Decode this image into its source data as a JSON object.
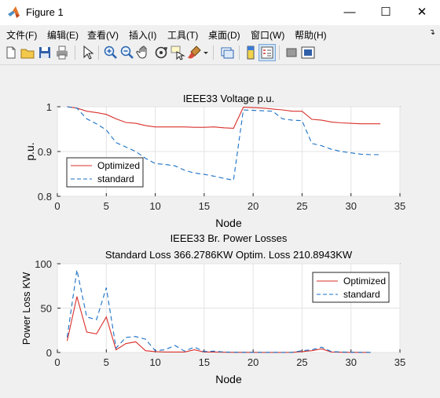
{
  "window": {
    "title": "Figure 1",
    "minimize": "—",
    "maximize": "☐",
    "close": "✕"
  },
  "menu": [
    {
      "label": "文件(F)"
    },
    {
      "label": "编辑(E)"
    },
    {
      "label": "查看(V)"
    },
    {
      "label": "插入(I)"
    },
    {
      "label": "工具(T)"
    },
    {
      "label": "桌面(D)"
    },
    {
      "label": "窗口(W)"
    },
    {
      "label": "帮助(H)"
    }
  ],
  "toolbar": [
    "new-figure-icon",
    "open-file-icon",
    "save-icon",
    "print-icon",
    "pointer-icon",
    "zoom-in-icon",
    "zoom-out-icon",
    "pan-hand-icon",
    "rotate-3d-icon",
    "data-cursor-icon",
    "brush-icon",
    "link-plot-icon",
    "colorbar-icon",
    "legend-icon",
    "hide-plot-tools-icon",
    "show-plot-tools-icon"
  ],
  "colors": {
    "optimized": "#d9302b",
    "standard": "#1a6fc4"
  },
  "chart_data": [
    {
      "type": "line",
      "title": "IEEE33 Voltage p.u.",
      "xlabel": "Node",
      "ylabel": "p.u.",
      "xlim": [
        0,
        35
      ],
      "ylim": [
        0.8,
        1.0
      ],
      "xticks": [
        "0",
        "5",
        "10",
        "15",
        "20",
        "25",
        "30",
        "35"
      ],
      "yticks": [
        "0.8",
        "0.9",
        "1"
      ],
      "grid": true,
      "legend": "bottom-left",
      "x": [
        1,
        2,
        3,
        4,
        5,
        6,
        7,
        8,
        9,
        10,
        11,
        12,
        13,
        14,
        15,
        16,
        17,
        18,
        19,
        20,
        21,
        22,
        23,
        24,
        25,
        26,
        27,
        28,
        29,
        30,
        31,
        32,
        33
      ],
      "series": [
        {
          "name": "Optimized",
          "style": "solid",
          "values": [
            1.0,
            0.997,
            0.99,
            0.987,
            0.983,
            0.973,
            0.965,
            0.963,
            0.958,
            0.955,
            0.955,
            0.955,
            0.955,
            0.954,
            0.954,
            0.955,
            0.953,
            0.952,
            0.999,
            0.998,
            0.997,
            0.995,
            0.993,
            0.99,
            0.99,
            0.972,
            0.97,
            0.966,
            0.964,
            0.963,
            0.962,
            0.962,
            0.962
          ]
        },
        {
          "name": "standard",
          "style": "dashed",
          "values": [
            1.0,
            0.997,
            0.973,
            0.962,
            0.948,
            0.92,
            0.91,
            0.9,
            0.885,
            0.873,
            0.871,
            0.868,
            0.858,
            0.852,
            0.849,
            0.845,
            0.84,
            0.836,
            0.993,
            0.992,
            0.991,
            0.99,
            0.973,
            0.97,
            0.969,
            0.918,
            0.913,
            0.905,
            0.9,
            0.897,
            0.894,
            0.893,
            0.893
          ]
        }
      ]
    },
    {
      "type": "line",
      "title": "IEEE33 Br. Power Losses",
      "subtitle": "Standard Loss 366.2786KW  Optim. Loss 210.8943KW",
      "xlabel": "Node",
      "ylabel": "Power Loss KW",
      "xlim": [
        0,
        35
      ],
      "ylim": [
        0,
        100
      ],
      "xticks": [
        "0",
        "5",
        "10",
        "15",
        "20",
        "25",
        "30",
        "35"
      ],
      "yticks": [
        "0",
        "50",
        "100"
      ],
      "grid": true,
      "legend": "top-right",
      "x": [
        1,
        2,
        3,
        4,
        5,
        6,
        7,
        8,
        9,
        10,
        11,
        12,
        13,
        14,
        15,
        16,
        17,
        18,
        19,
        20,
        21,
        22,
        23,
        24,
        25,
        26,
        27,
        28,
        29,
        30,
        31,
        32
      ],
      "series": [
        {
          "name": "Optimized",
          "style": "solid",
          "values": [
            13,
            63,
            23,
            21,
            40,
            3,
            10,
            12,
            2,
            1,
            0.5,
            0.5,
            0.5,
            3,
            0.5,
            0.5,
            0.3,
            0.2,
            0.2,
            0.2,
            0.1,
            0.1,
            0.1,
            0.2,
            1,
            2,
            4,
            0.5,
            0.3,
            0.2,
            0.1,
            0.1
          ]
        },
        {
          "name": "standard",
          "style": "dashed",
          "values": [
            17,
            93,
            40,
            37,
            73,
            5,
            17,
            18,
            15,
            2,
            3,
            8,
            1.5,
            6,
            1,
            1.5,
            0.5,
            0.3,
            0.2,
            0.2,
            0.2,
            0.2,
            0.1,
            0.2,
            2,
            3,
            6,
            1,
            0.5,
            0.3,
            0.2,
            0.1
          ]
        }
      ]
    }
  ]
}
